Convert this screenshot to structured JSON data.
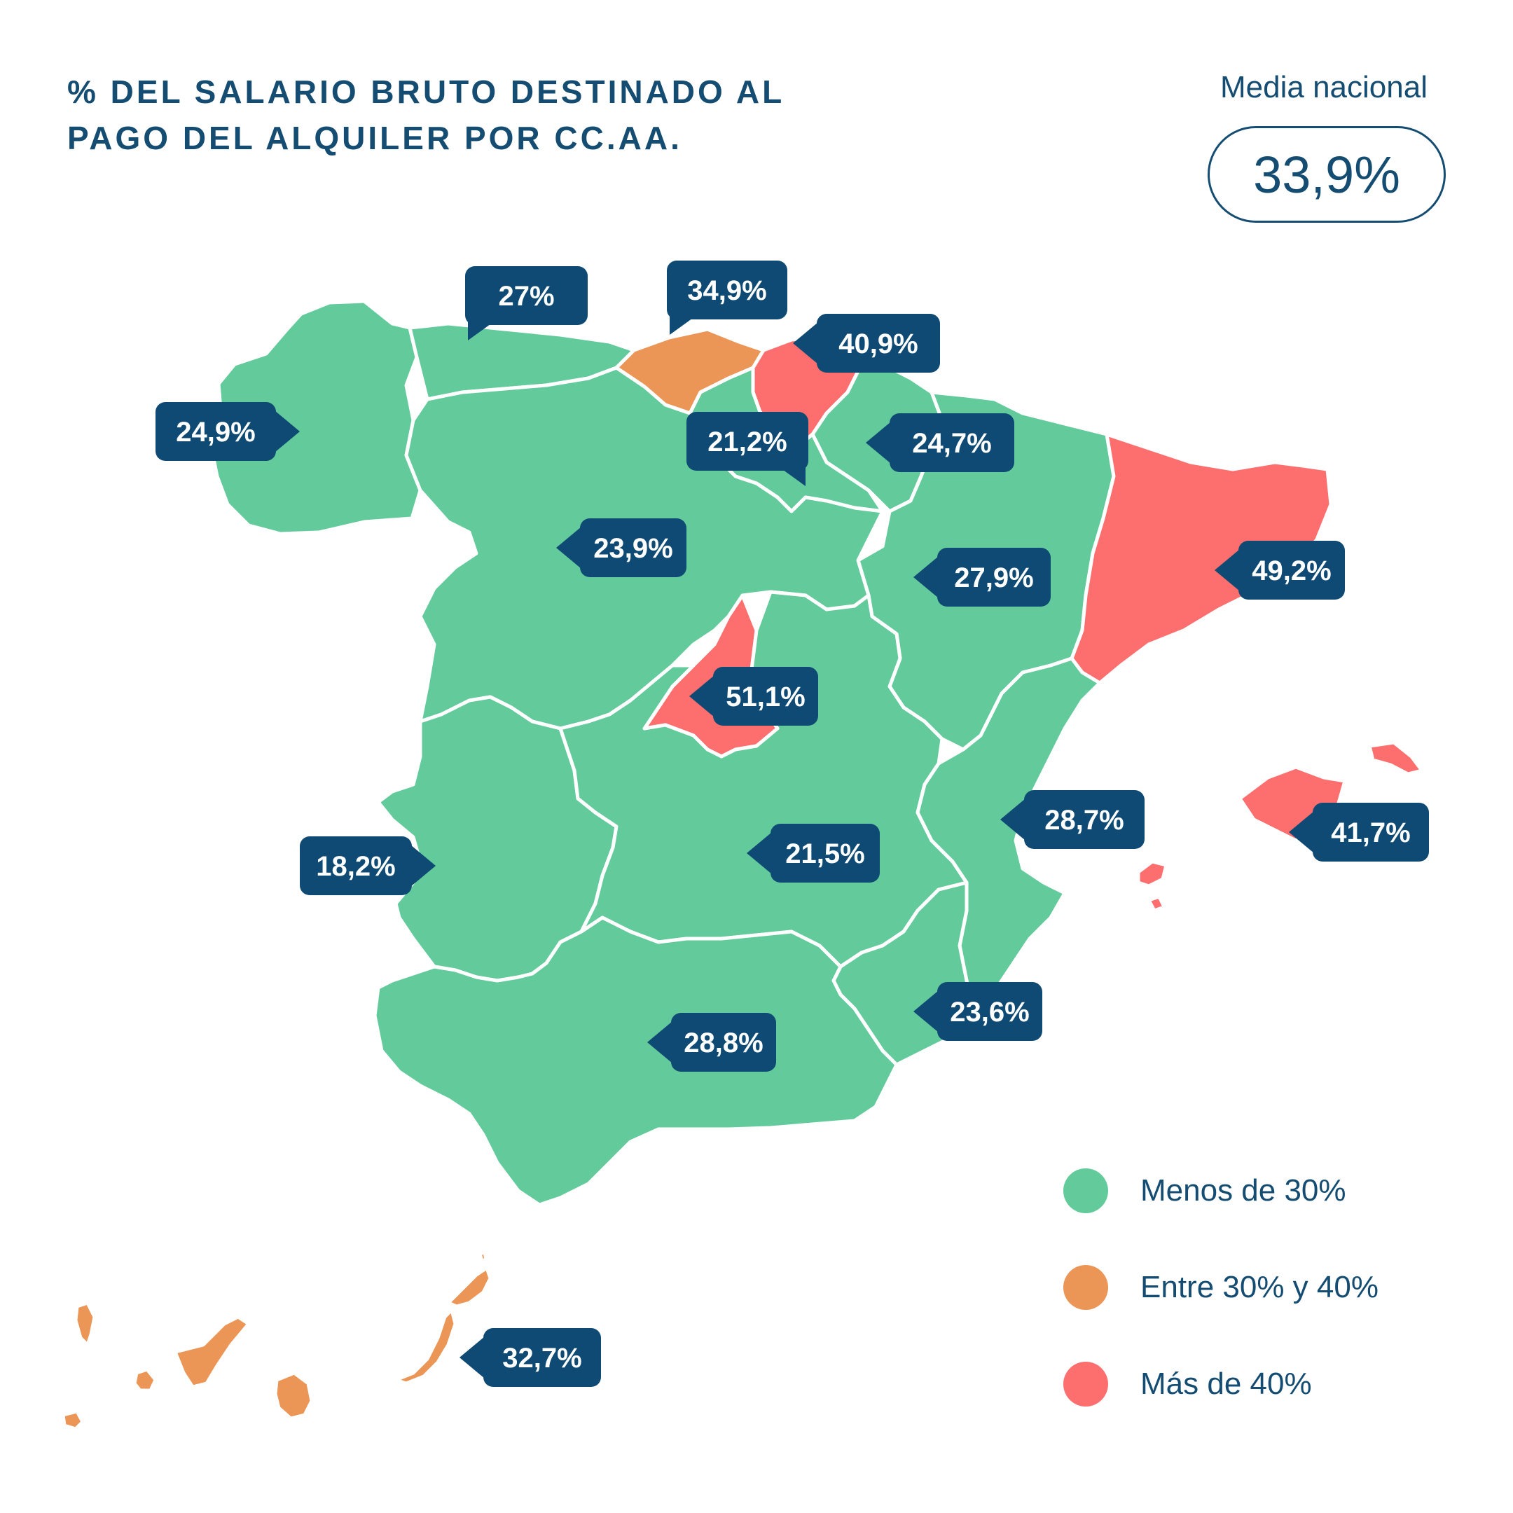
{
  "title": {
    "line1": "% DEL SALARIO BRUTO DESTINADO AL",
    "line2": "PAGO DEL ALQUILER POR CC.AA."
  },
  "media_nacional": {
    "label": "Media nacional",
    "value": "33,9%"
  },
  "colors": {
    "green": "#63cb9b",
    "orange": "#eb9556",
    "red": "#fd6f6f",
    "label_bg": "#0e4a73",
    "label_text": "#ffffff",
    "title_text": "#154d72"
  },
  "legend": [
    {
      "label": "Menos de 30%",
      "category": "green"
    },
    {
      "label": "Entre 30% y 40%",
      "category": "orange"
    },
    {
      "label": "Más de 40%",
      "category": "red"
    }
  ],
  "regions": {
    "galicia": "24,9%",
    "asturias": "27%",
    "cantabria": "34,9%",
    "pais_vasco": "40,9%",
    "la_rioja": "21,2%",
    "navarra": "24,7%",
    "castilla_leon": "23,9%",
    "aragon": "27,9%",
    "cataluna": "49,2%",
    "madrid": "51,1%",
    "comunidad_valenciana": "28,7%",
    "baleares": "41,7%",
    "extremadura": "18,2%",
    "castilla_la_mancha": "21,5%",
    "murcia": "23,6%",
    "andalucia": "28,8%",
    "canarias": "32,7%"
  }
}
